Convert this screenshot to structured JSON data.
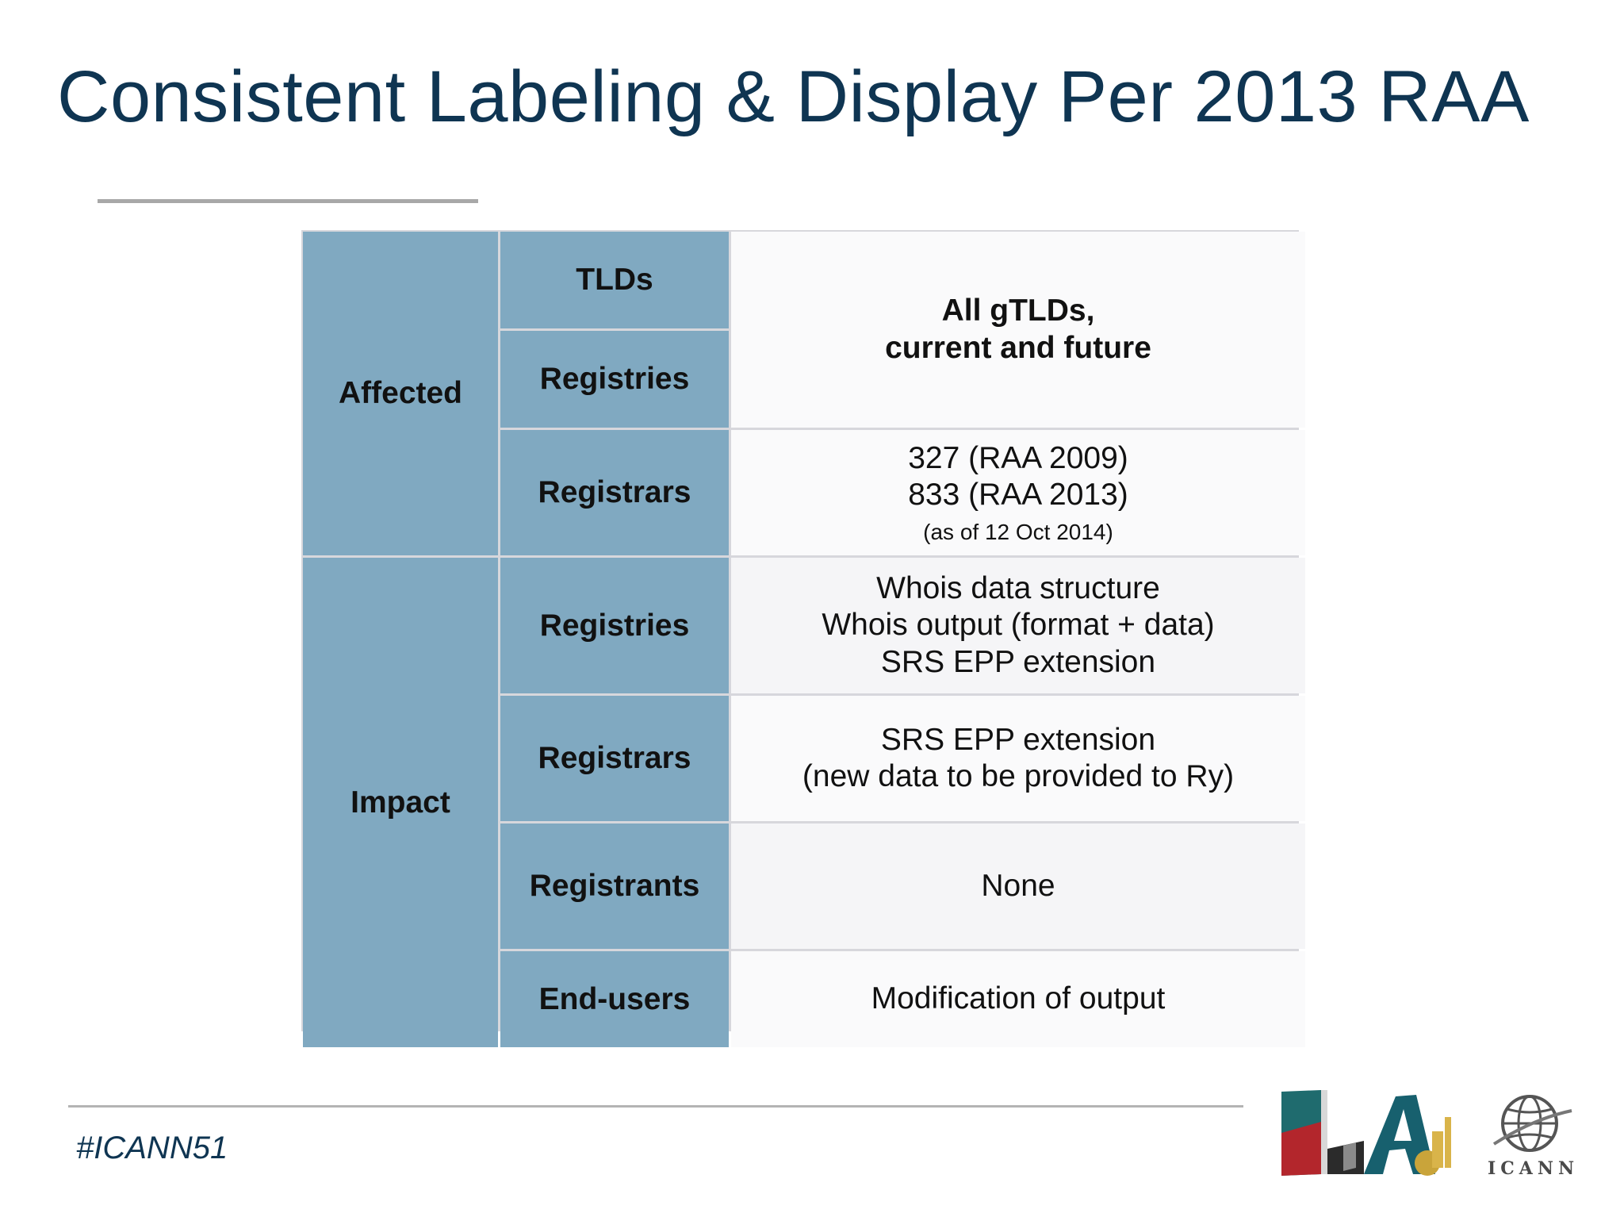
{
  "slide": {
    "title": "Consistent Labeling & Display Per 2013 RAA",
    "hashtag": "#ICANN51",
    "logo_text": "ICANN"
  },
  "table": {
    "affected": {
      "label": "Affected",
      "tlds_label": "TLDs",
      "registries_label": "Registries",
      "registrars_label": "Registrars",
      "tlds_registries_value": [
        "All gTLDs,",
        "current and future"
      ],
      "registrars_value": [
        "327 (RAA 2009)",
        "833 (RAA 2013)"
      ],
      "registrars_note": "(as of 12 Oct 2014)"
    },
    "impact": {
      "label": "Impact",
      "registries_label": "Registries",
      "registrars_label": "Registrars",
      "registrants_label": "Registrants",
      "endusers_label": "End-users",
      "registries_value": [
        "Whois data structure",
        "Whois output (format + data)",
        "SRS EPP extension"
      ],
      "registrars_value": [
        "SRS EPP extension",
        "(new data to be provided to Ry)"
      ],
      "registrants_value": "None",
      "endusers_value": "Modification of output"
    }
  },
  "colors": {
    "title": "#0f3552",
    "header_cell": "#80a9c1",
    "border": "#d7d7dc"
  }
}
